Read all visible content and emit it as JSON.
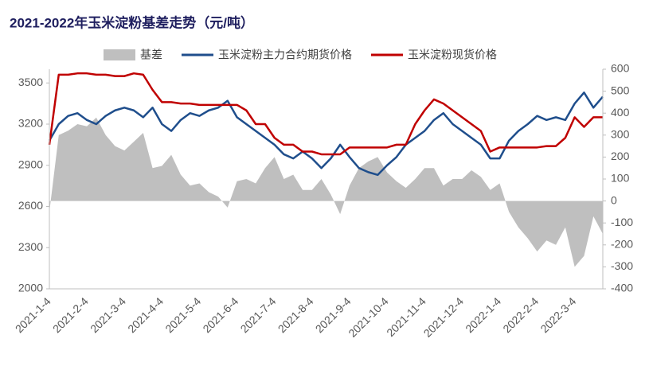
{
  "chart_data": {
    "type": "line",
    "title": "2021-2022年玉米淀粉基差走势（元/吨）",
    "categories": [
      "2021-1-4",
      null,
      null,
      null,
      "2021-2-4",
      null,
      null,
      null,
      "2021-3-4",
      null,
      null,
      null,
      "2021-4-4",
      null,
      null,
      null,
      "2021-5-4",
      null,
      null,
      null,
      "2021-6-4",
      null,
      null,
      null,
      "2021-7-4",
      null,
      null,
      null,
      "2021-8-4",
      null,
      null,
      null,
      "2021-9-4",
      null,
      null,
      null,
      "2021-10-4",
      null,
      null,
      null,
      "2021-11-4",
      null,
      null,
      null,
      "2021-12-4",
      null,
      null,
      null,
      "2022-1-4",
      null,
      null,
      null,
      "2022-2-4",
      null,
      null,
      null,
      "2022-3-4",
      null,
      null,
      null
    ],
    "series": [
      {
        "name": "基差",
        "type": "area",
        "axis": "y2",
        "color": "#bfbfbf",
        "values": [
          -50,
          300,
          320,
          350,
          340,
          380,
          300,
          250,
          230,
          270,
          310,
          150,
          160,
          210,
          120,
          70,
          80,
          40,
          20,
          -30,
          90,
          100,
          80,
          150,
          200,
          100,
          120,
          50,
          50,
          100,
          30,
          -60,
          70,
          150,
          180,
          200,
          130,
          90,
          60,
          100,
          150,
          150,
          70,
          100,
          100,
          140,
          110,
          50,
          80,
          -50,
          -120,
          -170,
          -230,
          -180,
          -200,
          -120,
          -300,
          -250,
          -70,
          -150
        ]
      },
      {
        "name": "玉米淀粉主力合约期货价格",
        "type": "line",
        "axis": "y",
        "color": "#1f4e8c",
        "values": [
          3080,
          3200,
          3260,
          3280,
          3230,
          3200,
          3260,
          3300,
          3320,
          3300,
          3250,
          3320,
          3200,
          3150,
          3230,
          3280,
          3260,
          3300,
          3320,
          3370,
          3250,
          3200,
          3150,
          3100,
          3050,
          2980,
          2950,
          3000,
          2950,
          2880,
          2950,
          3050,
          2960,
          2880,
          2850,
          2830,
          2900,
          2960,
          3050,
          3100,
          3150,
          3230,
          3280,
          3200,
          3150,
          3100,
          3050,
          2950,
          2950,
          3080,
          3150,
          3200,
          3260,
          3230,
          3250,
          3230,
          3350,
          3430,
          3320,
          3400
        ]
      },
      {
        "name": "玉米淀粉现货价格",
        "type": "line",
        "axis": "y",
        "color": "#c00000",
        "values": [
          3050,
          3560,
          3560,
          3570,
          3570,
          3560,
          3560,
          3550,
          3550,
          3570,
          3560,
          3450,
          3360,
          3360,
          3350,
          3350,
          3340,
          3340,
          3340,
          3340,
          3340,
          3300,
          3200,
          3200,
          3100,
          3050,
          3050,
          3000,
          3000,
          2980,
          2980,
          2980,
          3030,
          3030,
          3030,
          3030,
          3030,
          3050,
          3050,
          3200,
          3300,
          3380,
          3350,
          3300,
          3250,
          3200,
          3150,
          3000,
          3030,
          3030,
          3030,
          3030,
          3030,
          3040,
          3040,
          3100,
          3250,
          3180,
          3250,
          3250
        ]
      }
    ],
    "ylim": [
      2000,
      3600
    ],
    "yticks": [
      2000,
      2300,
      2600,
      2900,
      3200,
      3500
    ],
    "y2lim": [
      -400,
      600
    ],
    "y2ticks": [
      -400,
      -300,
      -200,
      -100,
      0,
      100,
      200,
      300,
      400,
      500,
      600
    ],
    "legend": "top"
  }
}
